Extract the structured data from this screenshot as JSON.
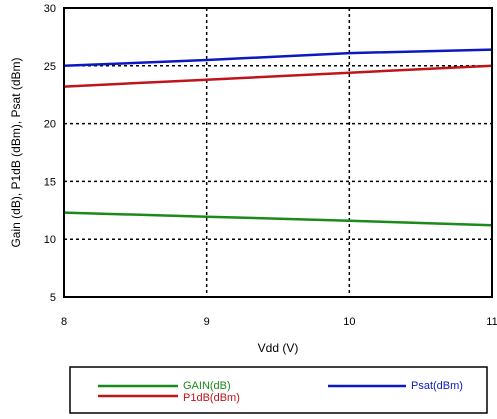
{
  "chart_data": {
    "type": "line",
    "title": "",
    "xlabel": "Vdd (V)",
    "ylabel": "Gain (dB), P1dB (dBm), Psat (dBm)",
    "xlim": [
      8,
      11
    ],
    "ylim": [
      5,
      30
    ],
    "x_ticks": [
      "8",
      "9",
      "10",
      "11"
    ],
    "y_ticks": [
      "5",
      "10",
      "15",
      "20",
      "25",
      "30"
    ],
    "grid": "dashed",
    "legend_position": "bottom",
    "x": [
      8,
      9,
      10,
      11
    ],
    "series": [
      {
        "name": "GAIN(dB)",
        "color": "#1a8a1a",
        "values": [
          12.3,
          11.95,
          11.6,
          11.2
        ]
      },
      {
        "name": "P1dB(dBm)",
        "color": "#c0141a",
        "values": [
          23.2,
          23.8,
          24.4,
          25.0
        ]
      },
      {
        "name": "Psat(dBm)",
        "color": "#0a1ac0",
        "values": [
          25.0,
          25.5,
          26.1,
          26.4
        ]
      }
    ]
  }
}
